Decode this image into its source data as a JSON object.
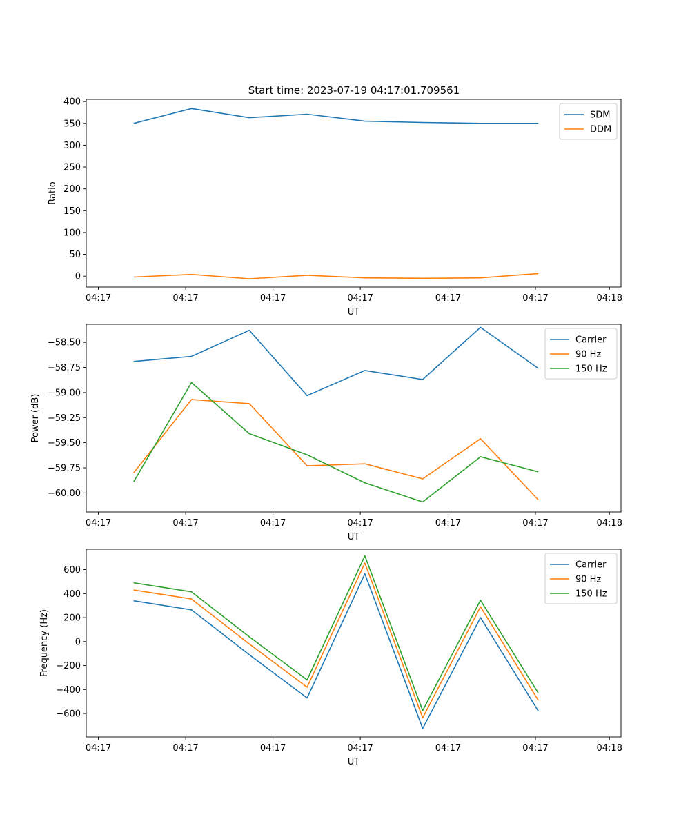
{
  "figure_title": "Start time: 2023-07-19 04:17:01.709561",
  "chart_data": [
    {
      "type": "line",
      "title": "Start time: 2023-07-19 04:17:01.709561",
      "xlabel": "UT",
      "ylabel": "Ratio",
      "x_tick_labels": [
        "04:17",
        "04:17",
        "04:17",
        "04:17",
        "04:17",
        "04:17",
        "04:18"
      ],
      "y_ticks": [
        0,
        50,
        100,
        150,
        200,
        250,
        300,
        350,
        400
      ],
      "y_tick_labels": [
        "0",
        "50",
        "100",
        "150",
        "200",
        "250",
        "300",
        "350",
        "400"
      ],
      "ylim": [
        -25,
        405
      ],
      "legend_position": "upper right",
      "x": [
        1,
        2,
        3,
        4,
        5,
        6,
        7,
        8
      ],
      "series": [
        {
          "name": "SDM",
          "color": "#1f77b4",
          "values": [
            350,
            384,
            363,
            371,
            355,
            352,
            350,
            350
          ]
        },
        {
          "name": "DDM",
          "color": "#ff7f0e",
          "values": [
            -2,
            4,
            -6,
            2,
            -4,
            -5,
            -4,
            6
          ]
        }
      ]
    },
    {
      "type": "line",
      "xlabel": "UT",
      "ylabel": "Power (dB)",
      "x_tick_labels": [
        "04:17",
        "04:17",
        "04:17",
        "04:17",
        "04:17",
        "04:17",
        "04:18"
      ],
      "y_ticks": [
        -60.0,
        -59.75,
        -59.5,
        -59.25,
        -59.0,
        -58.75,
        -58.5
      ],
      "y_tick_labels": [
        "−60.00",
        "−59.75",
        "−59.50",
        "−59.25",
        "−59.00",
        "−58.75",
        "−58.50"
      ],
      "ylim": [
        -60.19,
        -58.32
      ],
      "legend_position": "upper right",
      "x": [
        1,
        2,
        3,
        4,
        5,
        6,
        7,
        8
      ],
      "series": [
        {
          "name": "Carrier",
          "color": "#1f77b4",
          "values": [
            -58.69,
            -58.64,
            -58.38,
            -59.03,
            -58.78,
            -58.87,
            -58.35,
            -58.76
          ]
        },
        {
          "name": "90 Hz",
          "color": "#ff7f0e",
          "values": [
            -59.8,
            -59.07,
            -59.11,
            -59.73,
            -59.71,
            -59.86,
            -59.46,
            -60.07
          ]
        },
        {
          "name": "150 Hz",
          "color": "#2ca02c",
          "values": [
            -59.89,
            -58.9,
            -59.41,
            -59.62,
            -59.9,
            -60.09,
            -59.64,
            -59.79
          ]
        }
      ]
    },
    {
      "type": "line",
      "xlabel": "UT",
      "ylabel": "Frequency (Hz)",
      "x_tick_labels": [
        "04:17",
        "04:17",
        "04:17",
        "04:17",
        "04:17",
        "04:17",
        "04:18"
      ],
      "y_ticks": [
        -600,
        -400,
        -200,
        0,
        200,
        400,
        600
      ],
      "y_tick_labels": [
        "−600",
        "−400",
        "−200",
        "0",
        "200",
        "400",
        "600"
      ],
      "ylim": [
        -795,
        770
      ],
      "legend_position": "upper right",
      "x": [
        1,
        2,
        3,
        4,
        5,
        6,
        7,
        8
      ],
      "series": [
        {
          "name": "Carrier",
          "color": "#1f77b4",
          "values": [
            340,
            265,
            -110,
            -470,
            565,
            -725,
            200,
            -580
          ]
        },
        {
          "name": "90 Hz",
          "color": "#ff7f0e",
          "values": [
            430,
            355,
            -20,
            -380,
            655,
            -635,
            290,
            -490
          ]
        },
        {
          "name": "150 Hz",
          "color": "#2ca02c",
          "values": [
            490,
            415,
            40,
            -320,
            715,
            -575,
            345,
            -430
          ]
        }
      ]
    }
  ]
}
